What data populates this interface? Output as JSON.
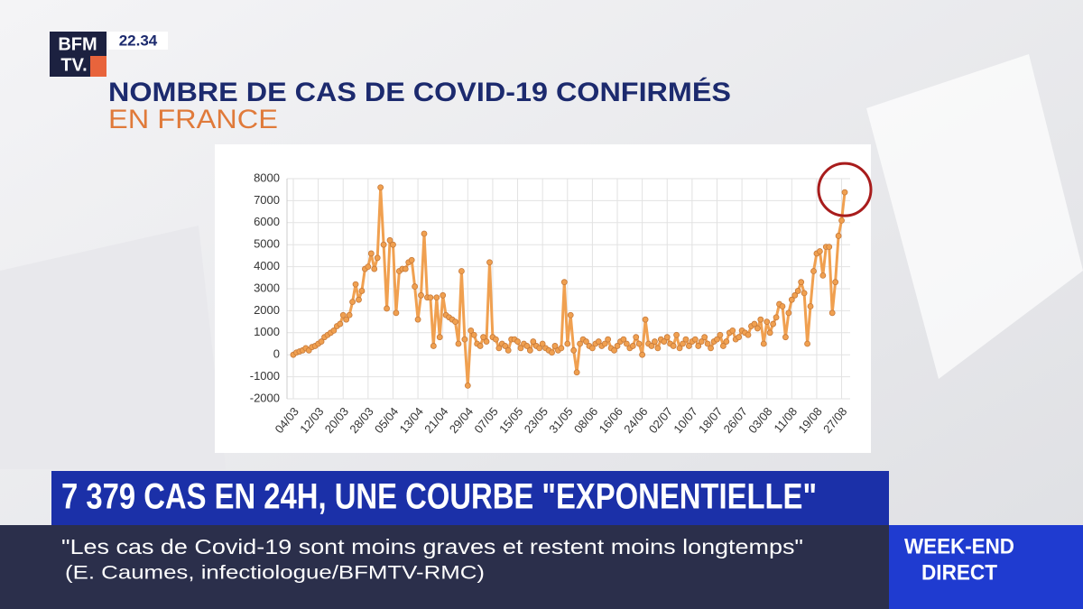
{
  "overlay": {
    "logo_top": "BFM",
    "logo_bottom": "TV.",
    "time": "22.34",
    "headline": "7 379 CAS EN 24H, UNE COURBE \"EXPONENTIELLE\"",
    "quote": "\"Les cas de Covid-19 sont moins graves et restent moins longtemps\"",
    "attribution": "(E. Caumes, infectiologue/BFMTV-RMC)",
    "badge_top": "WEEK-END",
    "badge_bottom": "DIRECT"
  },
  "chart_data": {
    "type": "line",
    "title": "NOMBRE DE CAS DE COVID-19 CONFIRMÉS",
    "subtitle": "EN FRANCE",
    "color": "#f0a050",
    "grid": true,
    "ylim": [
      -2000,
      8000
    ],
    "yticks": [
      -2000,
      -1000,
      0,
      1000,
      2000,
      3000,
      4000,
      5000,
      6000,
      7000,
      8000
    ],
    "categories": [
      "04/03",
      null,
      null,
      null,
      null,
      null,
      null,
      null,
      "12/03",
      null,
      null,
      null,
      null,
      null,
      null,
      null,
      "20/03",
      null,
      null,
      null,
      null,
      null,
      null,
      null,
      "28/03",
      null,
      null,
      null,
      null,
      null,
      null,
      null,
      "05/04",
      null,
      null,
      null,
      null,
      null,
      null,
      null,
      "13/04",
      null,
      null,
      null,
      null,
      null,
      null,
      null,
      "21/04",
      null,
      null,
      null,
      null,
      null,
      null,
      null,
      "29/04",
      null,
      null,
      null,
      null,
      null,
      null,
      null,
      "07/05",
      null,
      null,
      null,
      null,
      null,
      null,
      null,
      "15/05",
      null,
      null,
      null,
      null,
      null,
      null,
      null,
      "23/05",
      null,
      null,
      null,
      null,
      null,
      null,
      null,
      "31/05",
      null,
      null,
      null,
      null,
      null,
      null,
      null,
      "08/06",
      null,
      null,
      null,
      null,
      null,
      null,
      null,
      "16/06",
      null,
      null,
      null,
      null,
      null,
      null,
      null,
      "24/06",
      null,
      null,
      null,
      null,
      null,
      null,
      null,
      "02/07",
      null,
      null,
      null,
      null,
      null,
      null,
      null,
      "10/07",
      null,
      null,
      null,
      null,
      null,
      null,
      null,
      "18/07",
      null,
      null,
      null,
      null,
      null,
      null,
      null,
      "26/07",
      null,
      null,
      null,
      null,
      null,
      null,
      null,
      "03/08",
      null,
      null,
      null,
      null,
      null,
      null,
      null,
      "11/08",
      null,
      null,
      null,
      null,
      null,
      null,
      null,
      "19/08",
      null,
      null,
      null,
      null,
      null,
      null,
      null,
      "27/08",
      null
    ],
    "values": [
      0,
      100,
      150,
      200,
      300,
      200,
      350,
      400,
      500,
      600,
      800,
      900,
      1000,
      1100,
      1300,
      1400,
      1800,
      1600,
      1800,
      2400,
      3200,
      2500,
      2900,
      3900,
      4000,
      4600,
      3900,
      4400,
      7600,
      5000,
      2100,
      5200,
      5000,
      1900,
      3800,
      3900,
      3900,
      4200,
      4300,
      3100,
      1600,
      2700,
      5500,
      2600,
      2600,
      400,
      2600,
      800,
      2700,
      1800,
      1700,
      1600,
      1500,
      500,
      3800,
      700,
      -1400,
      1100,
      900,
      500,
      400,
      800,
      600,
      4200,
      800,
      700,
      300,
      500,
      400,
      200,
      700,
      700,
      600,
      300,
      500,
      400,
      200,
      600,
      400,
      300,
      500,
      300,
      200,
      100,
      400,
      200,
      300,
      3300,
      500,
      1800,
      200,
      -800,
      500,
      700,
      600,
      400,
      300,
      500,
      600,
      400,
      500,
      700,
      300,
      200,
      400,
      600,
      700,
      500,
      300,
      400,
      800,
      500,
      0,
      1600,
      500,
      400,
      600,
      300,
      700,
      600,
      800,
      500,
      400,
      900,
      300,
      500,
      700,
      400,
      600,
      700,
      400,
      600,
      800,
      500,
      300,
      600,
      700,
      900,
      400,
      600,
      1000,
      1100,
      700,
      800,
      1100,
      1000,
      900,
      1300,
      1400,
      1200,
      1600,
      500,
      1500,
      1000,
      1400,
      1700,
      2300,
      2200,
      800,
      1900,
      2500,
      2700,
      2900,
      3300,
      2800,
      500,
      2200,
      3800,
      4600,
      4700,
      3600,
      4900,
      4900,
      1900,
      3300,
      5400,
      6100,
      7379
    ]
  }
}
